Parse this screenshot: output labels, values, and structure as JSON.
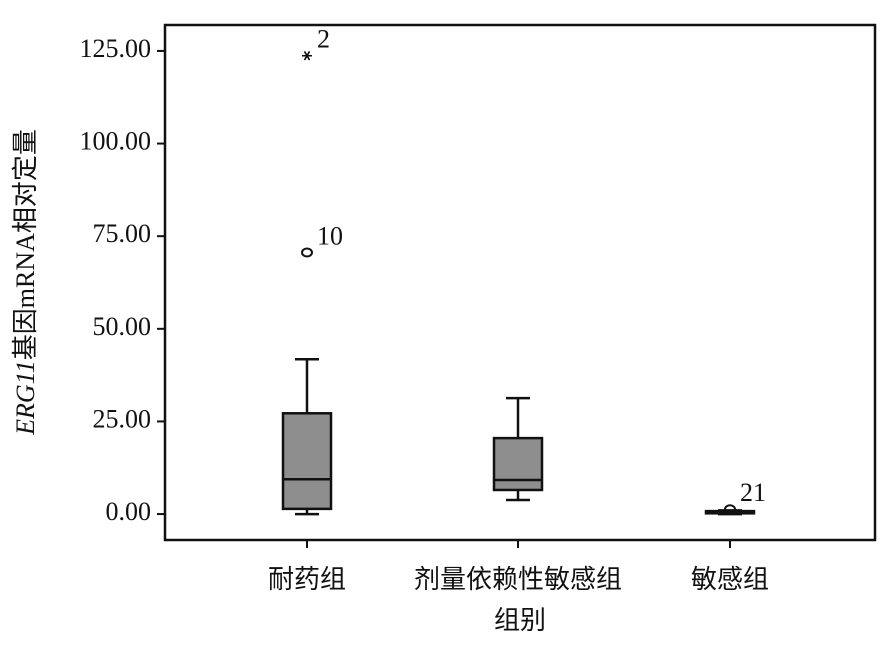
{
  "chart_data": {
    "type": "boxplot",
    "y_label_italic": "ERG11",
    "y_label": "基因mRNA相对定量",
    "x_label": "组别",
    "categories": [
      "耐药组",
      "剂量依赖性敏感组",
      "敏感组"
    ],
    "boxes": [
      {
        "min": 0,
        "q1": 1.4,
        "median": 9.4,
        "q3": 27.2,
        "max": 41.8,
        "outliers": [
          {
            "value": 70.6,
            "label": "10",
            "marker": "circle"
          },
          {
            "value": 123.7,
            "label": "2",
            "marker": "star"
          }
        ]
      },
      {
        "min": 3.8,
        "q1": 6.5,
        "median": 9.2,
        "q3": 20.5,
        "max": 31.3,
        "outliers": []
      },
      {
        "min": 0,
        "q1": 0.2,
        "median": 0.4,
        "q3": 0.8,
        "max": 1.0,
        "outliers": [
          {
            "value": 1.3,
            "label": "21",
            "marker": "circle"
          }
        ]
      }
    ],
    "color": "#8e8e8e",
    "ylim": [
      -7,
      132
    ],
    "yticks": [
      {
        "value": 0,
        "label": "0.00"
      },
      {
        "value": 25,
        "label": "25.00"
      },
      {
        "value": 50,
        "label": "50.00"
      },
      {
        "value": 75,
        "label": "75.00"
      },
      {
        "value": 100,
        "label": "100.00"
      },
      {
        "value": 125,
        "label": "125.00"
      }
    ]
  }
}
